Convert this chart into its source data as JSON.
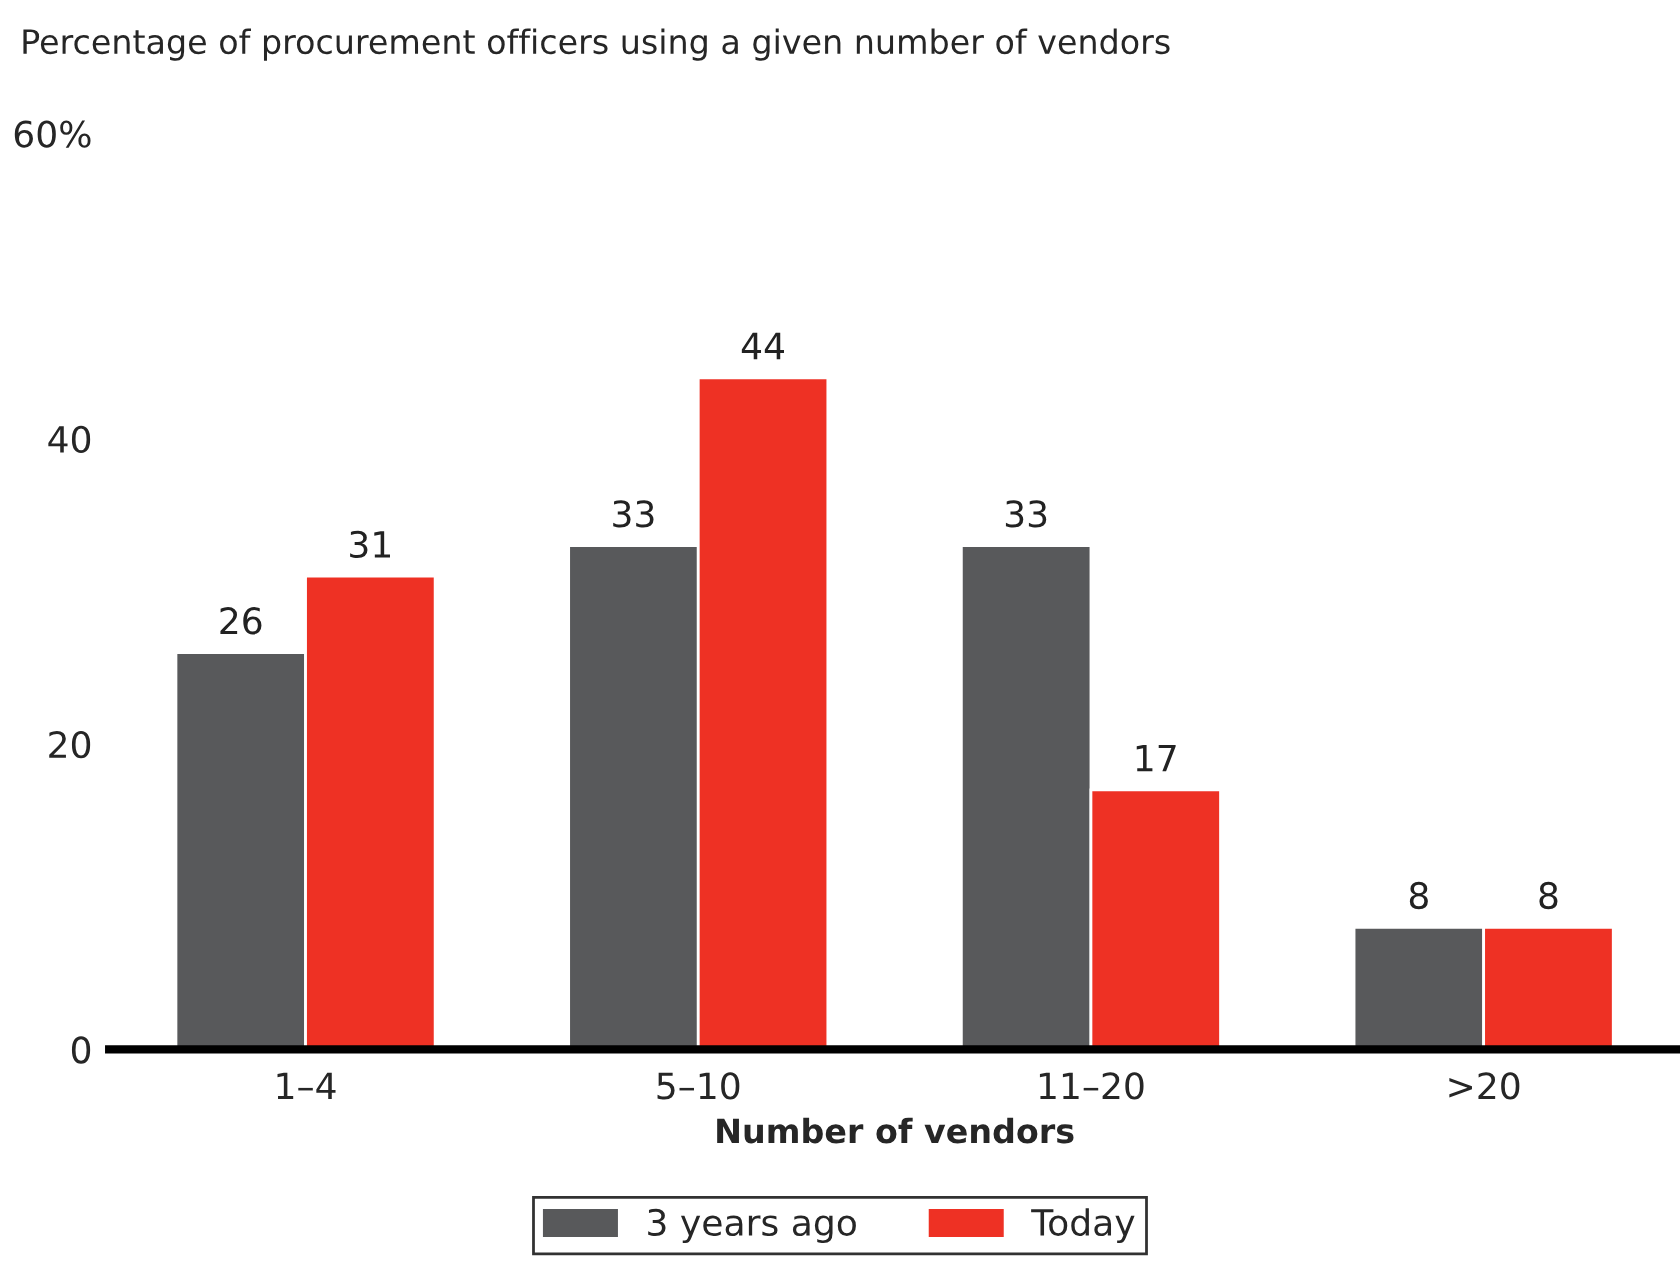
{
  "chart_data": {
    "type": "bar",
    "title": "Percentage of procurement officers using a given number of vendors",
    "xlabel": "Number of vendors",
    "categories": [
      "1–4",
      "5–10",
      "11–20",
      ">20"
    ],
    "series": [
      {
        "name": "3 years ago",
        "color": "#58595b",
        "values": [
          26,
          33,
          33,
          8
        ]
      },
      {
        "name": "Today",
        "color": "#ee3124",
        "values": [
          31,
          44,
          17,
          8
        ]
      }
    ],
    "ylim": [
      0,
      60
    ],
    "yticks": [
      0,
      20,
      40,
      {
        "value": 60,
        "label": "60%"
      }
    ],
    "data_labels": true,
    "grid": false,
    "legend": "bottom"
  }
}
